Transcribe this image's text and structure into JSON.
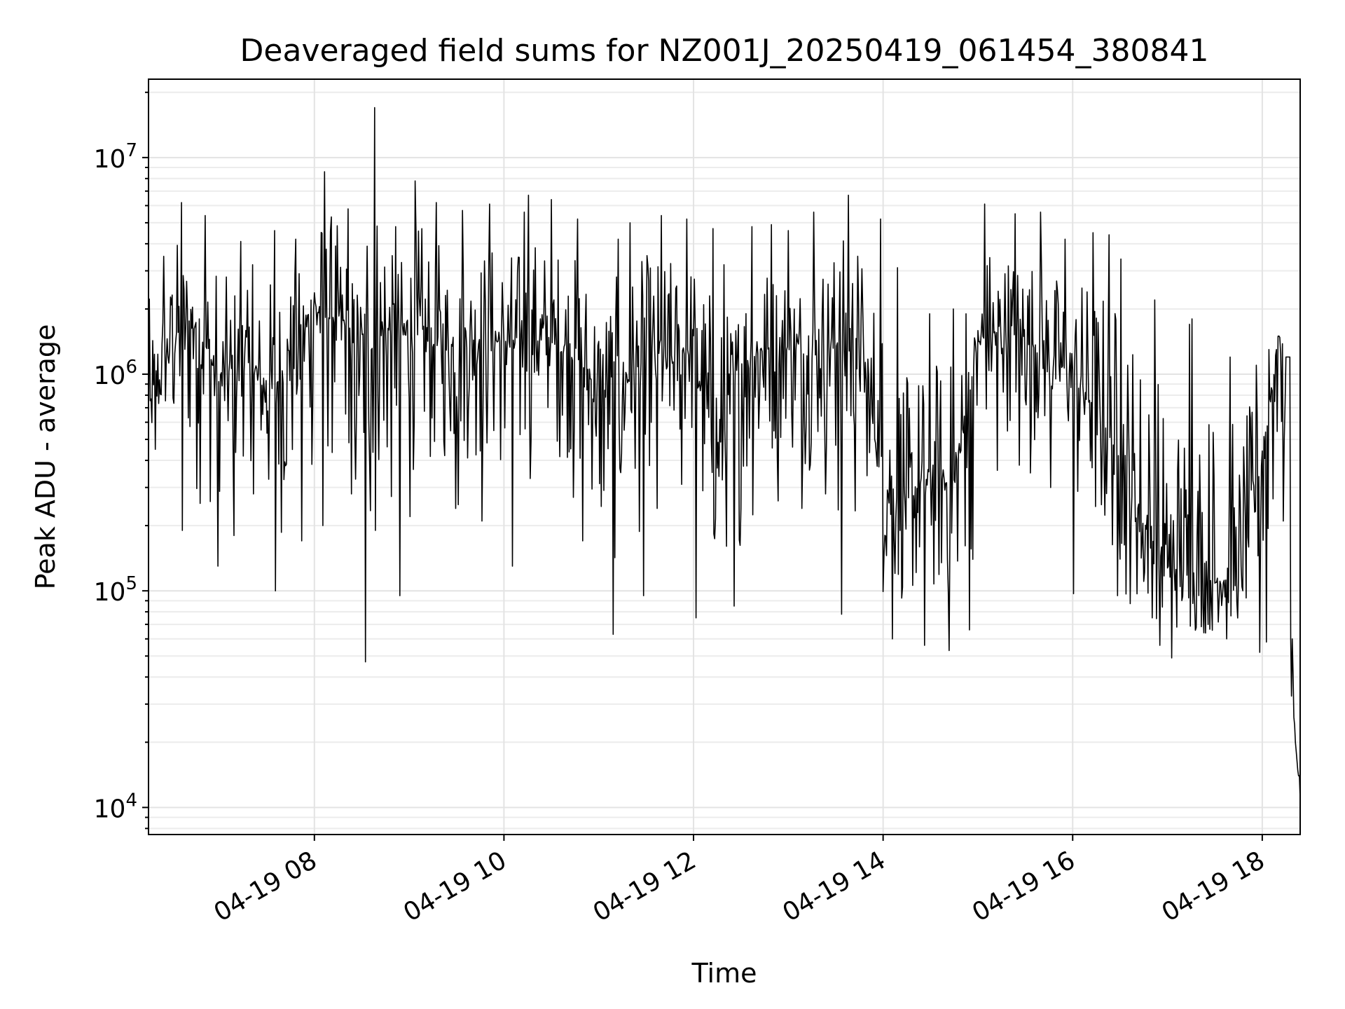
{
  "chart_data": {
    "type": "line",
    "title": "Deaveraged field sums for NZ001J_20250419_061454_380841",
    "xlabel": "Time",
    "ylabel": "Peak ADU - average",
    "y_scale": "log",
    "ylim": [
      7500,
      23000000
    ],
    "xlim": [
      "2025-04-19 06:15",
      "2025-04-19 18:24"
    ],
    "x_ticks": [
      {
        "t": "2025-04-19 08:00",
        "label": "04-19 08"
      },
      {
        "t": "2025-04-19 10:00",
        "label": "04-19 10"
      },
      {
        "t": "2025-04-19 12:00",
        "label": "04-19 12"
      },
      {
        "t": "2025-04-19 14:00",
        "label": "04-19 14"
      },
      {
        "t": "2025-04-19 16:00",
        "label": "04-19 16"
      },
      {
        "t": "2025-04-19 18:00",
        "label": "04-19 18"
      }
    ],
    "y_ticks": [
      {
        "value": 10000,
        "base": "10",
        "exp": "4"
      },
      {
        "value": 100000,
        "base": "10",
        "exp": "5"
      },
      {
        "value": 1000000,
        "base": "10",
        "exp": "6"
      },
      {
        "value": 10000000,
        "base": "10",
        "exp": "7"
      }
    ],
    "grid": true,
    "line_color": "#000000",
    "series": [
      {
        "x": [
          "2025-04-19 06:15",
          "2025-04-19 06:30",
          "2025-04-19 06:45",
          "2025-04-19 07:00",
          "2025-04-19 07:15",
          "2025-04-19 07:30",
          "2025-04-19 07:45",
          "2025-04-19 08:00",
          "2025-04-19 08:15",
          "2025-04-19 08:24",
          "2025-04-19 08:36",
          "2025-04-19 08:45",
          "2025-04-19 09:00",
          "2025-04-19 09:15",
          "2025-04-19 09:30",
          "2025-04-19 09:45",
          "2025-04-19 10:00",
          "2025-04-19 10:15",
          "2025-04-19 10:30",
          "2025-04-19 10:45",
          "2025-04-19 11:00",
          "2025-04-19 11:15",
          "2025-04-19 11:30",
          "2025-04-19 11:45",
          "2025-04-19 12:00",
          "2025-04-19 12:15",
          "2025-04-19 12:30",
          "2025-04-19 12:45",
          "2025-04-19 13:00",
          "2025-04-19 13:15",
          "2025-04-19 13:30",
          "2025-04-19 13:45",
          "2025-04-19 14:00",
          "2025-04-19 14:15",
          "2025-04-19 14:30",
          "2025-04-19 14:45",
          "2025-04-19 15:00",
          "2025-04-19 15:15",
          "2025-04-19 15:30",
          "2025-04-19 15:45",
          "2025-04-19 16:00",
          "2025-04-19 16:15",
          "2025-04-19 16:30",
          "2025-04-19 16:45",
          "2025-04-19 17:00",
          "2025-04-19 17:15",
          "2025-04-19 17:30",
          "2025-04-19 17:45",
          "2025-04-19 18:00",
          "2025-04-19 18:10",
          "2025-04-19 18:15",
          "2025-04-19 18:18",
          "2025-04-19 18:21",
          "2025-04-19 18:24"
        ],
        "y": [
          600000,
          1500000,
          1800000,
          900000,
          1200000,
          800000,
          1100000,
          2000000,
          1900000,
          1400000,
          1300000,
          1600000,
          1500000,
          1400000,
          1300000,
          1500000,
          1400000,
          1500000,
          1400000,
          1300000,
          800000,
          900000,
          1200000,
          1100000,
          1400000,
          400000,
          1100000,
          1300000,
          1300000,
          1200000,
          1400000,
          1500000,
          300000,
          250000,
          350000,
          300000,
          1400000,
          1600000,
          1500000,
          1200000,
          1000000,
          700000,
          400000,
          200000,
          130000,
          120000,
          110000,
          115000,
          400000,
          1500000,
          1200000,
          60000,
          20000,
          11000
        ],
        "max": [
          3500000,
          6200000,
          5400000,
          4100000,
          3200000,
          4600000,
          4200000,
          8600000,
          5800000,
          3900000,
          17000000,
          4800000,
          7800000,
          6200000,
          5700000,
          6100000,
          5600000,
          6700000,
          6400000,
          5200000,
          4200000,
          5000000,
          5400000,
          5200000,
          4700000,
          3200000,
          4800000,
          4900000,
          4600000,
          5600000,
          6700000,
          5200000,
          3100000,
          1900000,
          2000000,
          1900000,
          6100000,
          5500000,
          5600000,
          4200000,
          4500000,
          4400000,
          3400000,
          2200000,
          1700000,
          1800000,
          1200000,
          1100000,
          1300000,
          1500000,
          1500000,
          60000,
          23000,
          11000
        ],
        "min": [
          450000,
          190000,
          130000,
          180000,
          280000,
          100000,
          170000,
          200000,
          280000,
          47000,
          190000,
          95000,
          220000,
          240000,
          250000,
          210000,
          130000,
          330000,
          270000,
          170000,
          63000,
          95000,
          240000,
          310000,
          75000,
          85000,
          100000,
          260000,
          240000,
          280000,
          78000,
          340000,
          60000,
          56000,
          53000,
          66000,
          360000,
          380000,
          350000,
          300000,
          97000,
          95000,
          55000,
          56000,
          49000,
          50000,
          60000,
          52000,
          58000,
          210000,
          1200000,
          24000,
          14000,
          10500
        ]
      }
    ]
  }
}
